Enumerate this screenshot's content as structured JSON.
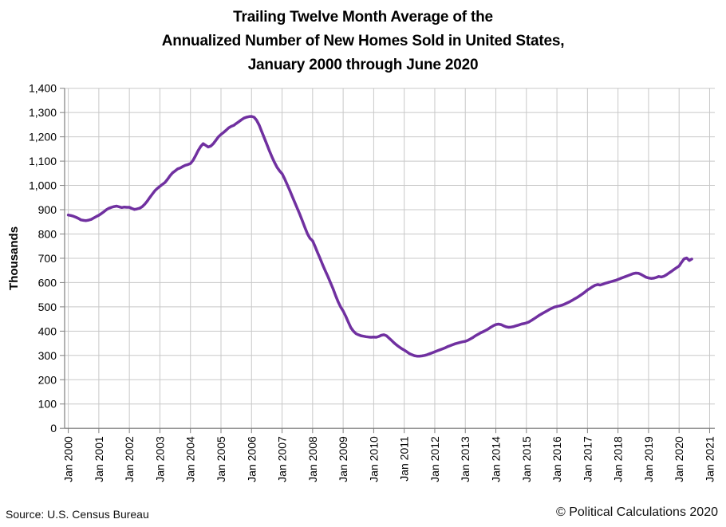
{
  "title": {
    "line1": "Trailing Twelve Month Average of the",
    "line2": "Annualized Number of New Homes Sold in United States,",
    "line3": "January 2000 through June 2020"
  },
  "footer": {
    "source": "Source: U.S. Census Bureau",
    "copyright": "© Political Calculations 2020"
  },
  "colors": {
    "line": "#7030A0",
    "gridline": "#c8c8c8",
    "axis": "#808080",
    "text": "#000000",
    "background": "#ffffff"
  },
  "chart_data": {
    "type": "line",
    "title": "Trailing Twelve Month Average of the Annualized Number of New Homes Sold in United States, January 2000 through June 2020",
    "xlabel": "",
    "ylabel": "Thousands",
    "ylim": [
      0,
      1400
    ],
    "ytick_step": 100,
    "ytick_labels": [
      "0",
      "100",
      "200",
      "300",
      "400",
      "500",
      "600",
      "700",
      "800",
      "900",
      "1,000",
      "1,100",
      "1,200",
      "1,300",
      "1,400"
    ],
    "xtick_labels": [
      "Jan 2000",
      "Jan 2001",
      "Jan 2002",
      "Jan 2003",
      "Jan 2004",
      "Jan 2005",
      "Jan 2006",
      "Jan 2007",
      "Jan 2008",
      "Jan 2009",
      "Jan 2010",
      "Jan 2011",
      "Jan 2012",
      "Jan 2013",
      "Jan 2014",
      "Jan 2015",
      "Jan 2016",
      "Jan 2017",
      "Jan 2018",
      "Jan 2019",
      "Jan 2020",
      "Jan 2021"
    ],
    "grid": true,
    "legend": "none",
    "x_start": "Jan 2000",
    "x_end": "Jun 2020",
    "frequency": "monthly",
    "series": [
      {
        "name": "Trailing twelve month average of annualized new homes sold (thousands)",
        "color": "#7030A0",
        "values": [
          878,
          876,
          873,
          869,
          864,
          858,
          856,
          855,
          857,
          860,
          866,
          872,
          877,
          884,
          892,
          900,
          906,
          910,
          913,
          915,
          912,
          909,
          911,
          910,
          910,
          905,
          901,
          903,
          906,
          912,
          922,
          935,
          950,
          964,
          978,
          988,
          996,
          1004,
          1012,
          1025,
          1040,
          1052,
          1060,
          1068,
          1072,
          1078,
          1083,
          1086,
          1090,
          1103,
          1122,
          1143,
          1160,
          1172,
          1165,
          1158,
          1162,
          1172,
          1186,
          1200,
          1210,
          1218,
          1227,
          1237,
          1243,
          1247,
          1255,
          1262,
          1270,
          1277,
          1281,
          1283,
          1284,
          1281,
          1268,
          1248,
          1222,
          1196,
          1170,
          1143,
          1118,
          1095,
          1075,
          1060,
          1048,
          1027,
          1004,
          980,
          955,
          930,
          905,
          880,
          853,
          826,
          800,
          782,
          772,
          748,
          722,
          698,
          672,
          648,
          625,
          600,
          575,
          548,
          522,
          500,
          483,
          462,
          438,
          415,
          400,
          390,
          385,
          381,
          379,
          377,
          376,
          375,
          376,
          375,
          378,
          383,
          385,
          381,
          372,
          362,
          352,
          343,
          335,
          328,
          322,
          315,
          308,
          303,
          299,
          297,
          297,
          298,
          300,
          303,
          307,
          311,
          315,
          319,
          323,
          327,
          331,
          336,
          340,
          344,
          348,
          351,
          354,
          356,
          358,
          362,
          368,
          374,
          381,
          387,
          393,
          398,
          403,
          409,
          416,
          422,
          427,
          429,
          427,
          422,
          418,
          416,
          417,
          419,
          422,
          425,
          429,
          431,
          434,
          438,
          444,
          451,
          458,
          465,
          471,
          477,
          483,
          489,
          494,
          499,
          502,
          504,
          507,
          511,
          516,
          521,
          527,
          533,
          539,
          546,
          553,
          561,
          570,
          576,
          583,
          589,
          592,
          590,
          593,
          597,
          600,
          603,
          606,
          609,
          613,
          617,
          621,
          625,
          629,
          633,
          637,
          639,
          638,
          634,
          628,
          622,
          619,
          617,
          618,
          621,
          625,
          623,
          626,
          632,
          639,
          646,
          654,
          661,
          668,
          684,
          698,
          701,
          691,
          697
        ]
      }
    ]
  }
}
